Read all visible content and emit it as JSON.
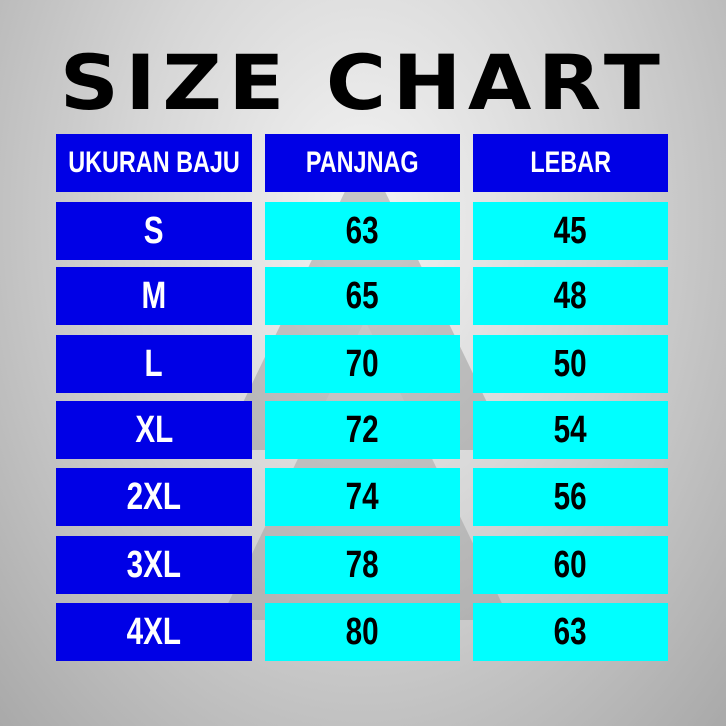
{
  "title": "SIZE CHART",
  "colors": {
    "header_bg": "#0000e6",
    "size_bg": "#0000e6",
    "value_bg": "#00ffff",
    "title": "#000000"
  },
  "chart_data": {
    "type": "table",
    "title": "SIZE CHART",
    "columns": [
      "UKURAN BAJU",
      "PANJNAG",
      "LEBAR"
    ],
    "rows": [
      [
        "S",
        "63",
        "45"
      ],
      [
        "M",
        "65",
        "48"
      ],
      [
        "L",
        "70",
        "50"
      ],
      [
        "XL",
        "72",
        "54"
      ],
      [
        "2XL",
        "74",
        "56"
      ],
      [
        "3XL",
        "78",
        "60"
      ],
      [
        "4XL",
        "80",
        "63"
      ]
    ]
  }
}
